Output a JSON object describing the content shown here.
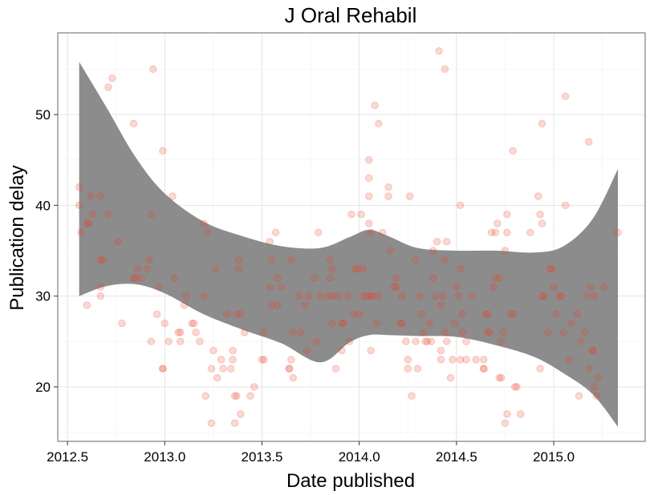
{
  "chart_data": {
    "type": "scatter",
    "title": "J Oral Rehabil",
    "xlabel": "Date published",
    "ylabel": "Publication delay",
    "xlim": [
      2012.45,
      2015.47
    ],
    "ylim": [
      14,
      59
    ],
    "x_ticks": [
      "2012.5",
      "2013.0",
      "2013.5",
      "2014.0",
      "2014.5",
      "2015.0"
    ],
    "y_ticks": [
      "20",
      "30",
      "40",
      "50"
    ],
    "grid": true,
    "legend": "none",
    "colors": {
      "points": "#f03b20",
      "band": "#8c8c8c",
      "frame": "#7f7f7f"
    },
    "point_alpha": 0.2,
    "smooth_band": {
      "x": [
        2012.56,
        2012.7,
        2012.85,
        2013.0,
        2013.2,
        2013.4,
        2013.6,
        2013.8,
        2013.95,
        2014.05,
        2014.15,
        2014.3,
        2014.5,
        2014.7,
        2014.9,
        2015.05,
        2015.2,
        2015.33
      ],
      "upper": [
        55.8,
        50.8,
        45.3,
        41.3,
        38.2,
        36.6,
        35.5,
        35.3,
        36.5,
        37.3,
        36.6,
        35.3,
        35.0,
        35.0,
        34.8,
        35.5,
        38.5,
        44.0
      ],
      "lower": [
        30.0,
        31.1,
        31.3,
        30.3,
        28.0,
        26.3,
        24.8,
        22.7,
        24.9,
        25.7,
        25.7,
        25.6,
        25.5,
        24.6,
        23.3,
        21.5,
        19.2,
        15.6
      ]
    },
    "points": [
      [
        2012.56,
        42
      ],
      [
        2012.56,
        40
      ],
      [
        2012.57,
        37
      ],
      [
        2012.6,
        29
      ],
      [
        2012.6,
        38
      ],
      [
        2012.61,
        38
      ],
      [
        2012.62,
        41
      ],
      [
        2012.63,
        39
      ],
      [
        2012.67,
        41
      ],
      [
        2012.67,
        34
      ],
      [
        2012.67,
        31
      ],
      [
        2012.67,
        30
      ],
      [
        2012.68,
        34
      ],
      [
        2012.71,
        53
      ],
      [
        2012.71,
        39
      ],
      [
        2012.73,
        54
      ],
      [
        2012.76,
        36
      ],
      [
        2012.78,
        27
      ],
      [
        2012.84,
        49
      ],
      [
        2012.84,
        32
      ],
      [
        2012.85,
        32
      ],
      [
        2012.86,
        33
      ],
      [
        2012.88,
        32
      ],
      [
        2012.91,
        33
      ],
      [
        2012.92,
        34
      ],
      [
        2012.93,
        39
      ],
      [
        2012.93,
        25
      ],
      [
        2012.94,
        55
      ],
      [
        2012.96,
        28
      ],
      [
        2012.97,
        31
      ],
      [
        2012.99,
        46
      ],
      [
        2012.99,
        22
      ],
      [
        2012.99,
        22
      ],
      [
        2013.0,
        27
      ],
      [
        2013.02,
        25
      ],
      [
        2013.04,
        41
      ],
      [
        2013.05,
        32
      ],
      [
        2013.07,
        26
      ],
      [
        2013.08,
        25
      ],
      [
        2013.08,
        26
      ],
      [
        2013.1,
        29
      ],
      [
        2013.11,
        30
      ],
      [
        2013.14,
        27
      ],
      [
        2013.15,
        27
      ],
      [
        2013.16,
        26
      ],
      [
        2013.18,
        25
      ],
      [
        2013.2,
        38
      ],
      [
        2013.2,
        30
      ],
      [
        2013.21,
        19
      ],
      [
        2013.22,
        37
      ],
      [
        2013.24,
        22
      ],
      [
        2013.24,
        16
      ],
      [
        2013.25,
        24
      ],
      [
        2013.26,
        33
      ],
      [
        2013.27,
        21
      ],
      [
        2013.29,
        23
      ],
      [
        2013.3,
        22
      ],
      [
        2013.32,
        28
      ],
      [
        2013.34,
        22
      ],
      [
        2013.35,
        24
      ],
      [
        2013.35,
        23
      ],
      [
        2013.36,
        19
      ],
      [
        2013.36,
        16
      ],
      [
        2013.37,
        28
      ],
      [
        2013.37,
        19
      ],
      [
        2013.38,
        34
      ],
      [
        2013.38,
        33
      ],
      [
        2013.39,
        17
      ],
      [
        2013.39,
        28
      ],
      [
        2013.41,
        26
      ],
      [
        2013.44,
        19
      ],
      [
        2013.46,
        20
      ],
      [
        2013.5,
        23
      ],
      [
        2013.51,
        23
      ],
      [
        2013.51,
        26
      ],
      [
        2013.54,
        31
      ],
      [
        2013.54,
        36
      ],
      [
        2013.55,
        34
      ],
      [
        2013.55,
        29
      ],
      [
        2013.57,
        37
      ],
      [
        2013.58,
        32
      ],
      [
        2013.58,
        29
      ],
      [
        2013.6,
        31
      ],
      [
        2013.64,
        22
      ],
      [
        2013.64,
        22
      ],
      [
        2013.65,
        23
      ],
      [
        2013.65,
        34
      ],
      [
        2013.66,
        26
      ],
      [
        2013.66,
        21
      ],
      [
        2013.69,
        30
      ],
      [
        2013.7,
        26
      ],
      [
        2013.72,
        29
      ],
      [
        2013.73,
        24
      ],
      [
        2013.74,
        30
      ],
      [
        2013.77,
        32
      ],
      [
        2013.78,
        25
      ],
      [
        2013.79,
        37
      ],
      [
        2013.8,
        30
      ],
      [
        2013.84,
        30
      ],
      [
        2013.85,
        32
      ],
      [
        2013.85,
        34
      ],
      [
        2013.86,
        33
      ],
      [
        2013.86,
        27
      ],
      [
        2013.86,
        30
      ],
      [
        2013.88,
        22
      ],
      [
        2013.89,
        30
      ],
      [
        2013.91,
        27
      ],
      [
        2013.91,
        24
      ],
      [
        2013.92,
        27
      ],
      [
        2013.94,
        30
      ],
      [
        2013.95,
        25
      ],
      [
        2013.96,
        39
      ],
      [
        2013.97,
        28
      ],
      [
        2013.98,
        33
      ],
      [
        2013.99,
        33
      ],
      [
        2014.0,
        28
      ],
      [
        2014.01,
        39
      ],
      [
        2014.02,
        30
      ],
      [
        2014.02,
        33
      ],
      [
        2014.04,
        30
      ],
      [
        2014.05,
        38
      ],
      [
        2014.05,
        41
      ],
      [
        2014.05,
        43
      ],
      [
        2014.05,
        45
      ],
      [
        2014.06,
        30
      ],
      [
        2014.06,
        24
      ],
      [
        2014.06,
        37
      ],
      [
        2014.07,
        30
      ],
      [
        2014.08,
        51
      ],
      [
        2014.09,
        27
      ],
      [
        2014.1,
        49
      ],
      [
        2014.1,
        30
      ],
      [
        2014.12,
        37
      ],
      [
        2014.15,
        41
      ],
      [
        2014.15,
        42
      ],
      [
        2014.16,
        35
      ],
      [
        2014.18,
        31
      ],
      [
        2014.19,
        32
      ],
      [
        2014.19,
        31
      ],
      [
        2014.21,
        27
      ],
      [
        2014.22,
        27
      ],
      [
        2014.22,
        30
      ],
      [
        2014.24,
        25
      ],
      [
        2014.25,
        23
      ],
      [
        2014.25,
        22
      ],
      [
        2014.26,
        41
      ],
      [
        2014.27,
        19
      ],
      [
        2014.29,
        34
      ],
      [
        2014.29,
        25
      ],
      [
        2014.3,
        22
      ],
      [
        2014.31,
        30
      ],
      [
        2014.32,
        28
      ],
      [
        2014.33,
        26
      ],
      [
        2014.34,
        25
      ],
      [
        2014.35,
        25
      ],
      [
        2014.36,
        27
      ],
      [
        2014.37,
        25
      ],
      [
        2014.38,
        32
      ],
      [
        2014.38,
        35
      ],
      [
        2014.39,
        30
      ],
      [
        2014.4,
        36
      ],
      [
        2014.41,
        57
      ],
      [
        2014.42,
        24
      ],
      [
        2014.42,
        23
      ],
      [
        2014.42,
        29
      ],
      [
        2014.43,
        30
      ],
      [
        2014.44,
        55
      ],
      [
        2014.44,
        34
      ],
      [
        2014.44,
        26
      ],
      [
        2014.45,
        25
      ],
      [
        2014.45,
        36
      ],
      [
        2014.47,
        21
      ],
      [
        2014.48,
        23
      ],
      [
        2014.49,
        27
      ],
      [
        2014.5,
        31
      ],
      [
        2014.51,
        30
      ],
      [
        2014.52,
        40
      ],
      [
        2014.52,
        33
      ],
      [
        2014.52,
        23
      ],
      [
        2014.53,
        26
      ],
      [
        2014.53,
        28
      ],
      [
        2014.55,
        25
      ],
      [
        2014.55,
        23
      ],
      [
        2014.58,
        30
      ],
      [
        2014.6,
        23
      ],
      [
        2014.64,
        22
      ],
      [
        2014.64,
        23
      ],
      [
        2014.64,
        22
      ],
      [
        2014.65,
        28
      ],
      [
        2014.66,
        26
      ],
      [
        2014.66,
        28
      ],
      [
        2014.67,
        26
      ],
      [
        2014.68,
        37
      ],
      [
        2014.69,
        31
      ],
      [
        2014.7,
        32
      ],
      [
        2014.7,
        37
      ],
      [
        2014.71,
        38
      ],
      [
        2014.72,
        21
      ],
      [
        2014.72,
        32
      ],
      [
        2014.73,
        25
      ],
      [
        2014.73,
        21
      ],
      [
        2014.74,
        26
      ],
      [
        2014.75,
        16
      ],
      [
        2014.75,
        35
      ],
      [
        2014.76,
        39
      ],
      [
        2014.76,
        17
      ],
      [
        2014.76,
        37
      ],
      [
        2014.78,
        28
      ],
      [
        2014.79,
        46
      ],
      [
        2014.79,
        28
      ],
      [
        2014.8,
        20
      ],
      [
        2014.81,
        20
      ],
      [
        2014.83,
        17
      ],
      [
        2014.88,
        37
      ],
      [
        2014.92,
        41
      ],
      [
        2014.93,
        39
      ],
      [
        2014.93,
        22
      ],
      [
        2014.94,
        38
      ],
      [
        2014.94,
        49
      ],
      [
        2014.94,
        30
      ],
      [
        2014.95,
        30
      ],
      [
        2014.97,
        26
      ],
      [
        2014.98,
        33
      ],
      [
        2014.99,
        33
      ],
      [
        2015.0,
        31
      ],
      [
        2015.01,
        28
      ],
      [
        2015.03,
        30
      ],
      [
        2015.04,
        30
      ],
      [
        2015.05,
        26
      ],
      [
        2015.06,
        52
      ],
      [
        2015.06,
        40
      ],
      [
        2015.08,
        23
      ],
      [
        2015.09,
        27
      ],
      [
        2015.12,
        28
      ],
      [
        2015.13,
        19
      ],
      [
        2015.14,
        25
      ],
      [
        2015.16,
        26
      ],
      [
        2015.17,
        30
      ],
      [
        2015.18,
        47
      ],
      [
        2015.18,
        22
      ],
      [
        2015.19,
        31
      ],
      [
        2015.2,
        24
      ],
      [
        2015.2,
        24
      ],
      [
        2015.21,
        20
      ],
      [
        2015.21,
        30
      ],
      [
        2015.22,
        19
      ],
      [
        2015.23,
        21
      ],
      [
        2015.26,
        31
      ],
      [
        2015.33,
        37
      ]
    ]
  }
}
